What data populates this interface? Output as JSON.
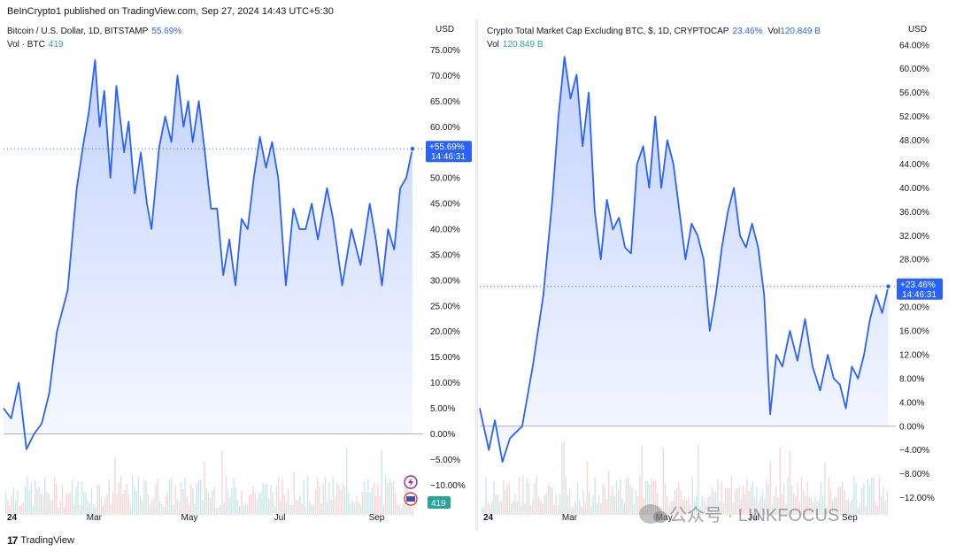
{
  "header": {
    "credit": "BeInCrypto1 published on TradingView.com, Sep 27, 2024 14:43 UTC+5:30"
  },
  "footer": {
    "logo": "17",
    "brand": "TradingView"
  },
  "watermark": {
    "text": "公众号 · LINKFOCUS"
  },
  "chart_data": [
    {
      "type": "area",
      "title": "Bitcoin / U.S. Dollar, 1D, BITSTAMP",
      "legend_value": "55.69%",
      "volume_label": "Vol · BTC",
      "volume_value": "419",
      "volume_badge": "419",
      "currency": "USD",
      "ylim": [
        -11.5,
        77.5
      ],
      "y_ticks": [
        -10,
        -5,
        0,
        5,
        10,
        15,
        20,
        25,
        30,
        35,
        40,
        45,
        50,
        55,
        60,
        65,
        70,
        75
      ],
      "y_tick_labels": [
        "−10.00%",
        "−5.00%",
        "0.00%",
        "5.00%",
        "10.00%",
        "15.00%",
        "20.00%",
        "25.00%",
        "30.00%",
        "35.00%",
        "40.00%",
        "45.00%",
        "50.00%",
        "55.00%",
        "60.00%",
        "65.00%",
        "70.00%",
        "75.00%"
      ],
      "x_ticks": [
        0,
        59,
        121,
        182,
        244
      ],
      "x_tick_labels": [
        "24",
        "Mar",
        "May",
        "Jul",
        "Sep"
      ],
      "x_range": [
        0,
        275
      ],
      "last_label": "+55.69%",
      "last_time": "14:46:31",
      "last_value": 55.69,
      "x": [
        0,
        5,
        10,
        15,
        20,
        25,
        30,
        35,
        42,
        48,
        52,
        56,
        60,
        63,
        66,
        70,
        74,
        79,
        82,
        86,
        90,
        94,
        97,
        102,
        106,
        110,
        114,
        118,
        121,
        124,
        128,
        132,
        136,
        140,
        144,
        148,
        152,
        156,
        160,
        164,
        168,
        172,
        176,
        180,
        185,
        190,
        194,
        198,
        202,
        206,
        212,
        216,
        222,
        228,
        234,
        240,
        244,
        248,
        252,
        256,
        260,
        264,
        268
      ],
      "values": [
        5,
        3,
        10,
        -3,
        0,
        2,
        8,
        20,
        28,
        48,
        56,
        63,
        73,
        60,
        67,
        50,
        68,
        55,
        61,
        47,
        55,
        45,
        40,
        56,
        62,
        57,
        70,
        60,
        65,
        57,
        65,
        55,
        44,
        44,
        31,
        38,
        29,
        42,
        40,
        50,
        58,
        52,
        57,
        50,
        29,
        44,
        40,
        40,
        45,
        38,
        48,
        42,
        29,
        40,
        33,
        45,
        38,
        29,
        40,
        36,
        48,
        50,
        55.69
      ]
    },
    {
      "type": "area",
      "title": "Crypto Total Market Cap Excluding BTC, $, 1D, CRYPTOCAP",
      "legend_value": "23.46%",
      "volume_label": "Vol",
      "volume_value": "120.849 B",
      "currency": "USD",
      "ylim": [
        -12.8,
        65.3
      ],
      "y_ticks": [
        -12,
        -8,
        -4,
        0,
        4,
        8,
        12,
        16,
        20,
        24,
        28,
        32,
        36,
        40,
        44,
        48,
        52,
        56,
        60,
        64
      ],
      "y_tick_labels": [
        "−12.00%",
        "−8.00%",
        "−4.00%",
        "0.00%",
        "4.00%",
        "8.00%",
        "12.00%",
        "16.00%",
        "20.00%",
        "24.00%",
        "28.00%",
        "32.00%",
        "36.00%",
        "40.00%",
        "44.00%",
        "48.00%",
        "52.00%",
        "56.00%",
        "60.00%",
        "64.00%"
      ],
      "x_ticks": [
        0,
        59,
        121,
        182,
        244
      ],
      "x_tick_labels": [
        "24",
        "Mar",
        "May",
        "Jul",
        "Sep"
      ],
      "x_range": [
        0,
        275
      ],
      "last_label": "+23.46%",
      "last_time": "14:46:31",
      "last_value": 23.46,
      "x": [
        0,
        6,
        10,
        15,
        20,
        28,
        35,
        42,
        48,
        52,
        56,
        60,
        64,
        68,
        72,
        76,
        80,
        84,
        88,
        92,
        96,
        100,
        104,
        108,
        112,
        116,
        120,
        124,
        128,
        132,
        136,
        140,
        144,
        148,
        152,
        156,
        160,
        164,
        168,
        172,
        176,
        180,
        184,
        188,
        192,
        196,
        200,
        205,
        210,
        215,
        220,
        225,
        230,
        234,
        238,
        242,
        246,
        250,
        254,
        258,
        262,
        266,
        270
      ],
      "values": [
        3,
        -4,
        1,
        -6,
        -2,
        0,
        10,
        22,
        38,
        52,
        62,
        55,
        59,
        47,
        56,
        36,
        28,
        38,
        33,
        35,
        30,
        29,
        44,
        47,
        40,
        52,
        40,
        48,
        44,
        36,
        28,
        34,
        32,
        28,
        16,
        22,
        30,
        36,
        40,
        32,
        30,
        34,
        30,
        22,
        2,
        12,
        10,
        16,
        11,
        18,
        10,
        6,
        12,
        8,
        7,
        3,
        10,
        8,
        12,
        18,
        22,
        19,
        23.46
      ]
    }
  ]
}
